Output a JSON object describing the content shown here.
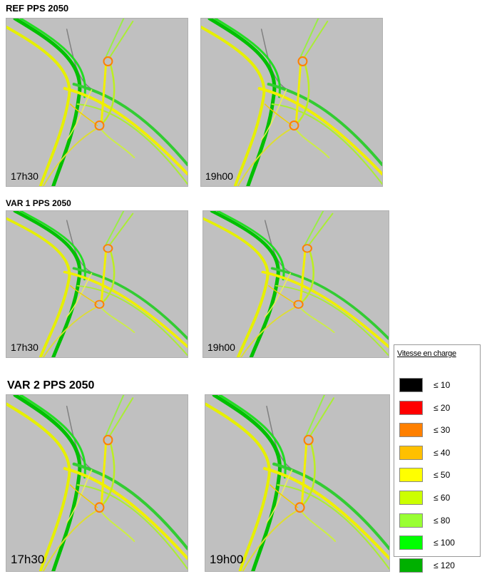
{
  "sections": [
    {
      "title": "REF PPS 2050",
      "panels": [
        {
          "time": "17h30"
        },
        {
          "time": "19h00"
        }
      ]
    },
    {
      "title": "VAR 1 PPS 2050",
      "panels": [
        {
          "time": "17h30"
        },
        {
          "time": "19h00"
        }
      ]
    },
    {
      "title": "VAR 2 PPS 2050",
      "panels": [
        {
          "time": "17h30"
        },
        {
          "time": "19h00"
        }
      ]
    }
  ],
  "legend": {
    "title": "Vitesse en charge",
    "items": [
      {
        "label": "≤ 10",
        "color": "#000000"
      },
      {
        "label": "≤ 20",
        "color": "#ff0000"
      },
      {
        "label": "≤ 30",
        "color": "#ff8000"
      },
      {
        "label": "≤ 40",
        "color": "#ffc000"
      },
      {
        "label": "≤ 50",
        "color": "#ffff00"
      },
      {
        "label": "≤ 60",
        "color": "#ccff00"
      },
      {
        "label": "≤ 80",
        "color": "#99ff33"
      },
      {
        "label": "≤ 100",
        "color": "#00ff00"
      },
      {
        "label": "≤ 120",
        "color": "#00b000"
      }
    ]
  }
}
